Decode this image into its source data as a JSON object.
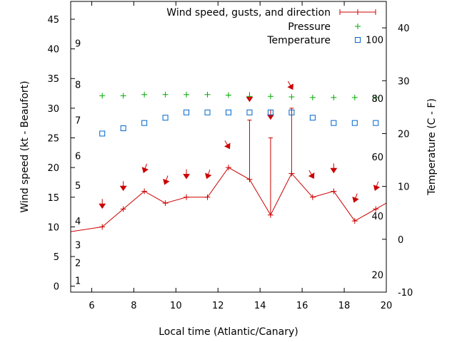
{
  "chart_data": {
    "type": "line",
    "xlabel": "Local time (Atlantic/Canary)",
    "ylabel": "Wind speed (kt - Beaufort)",
    "y2label": "Temperature (C - F)",
    "xlim": [
      5,
      20
    ],
    "ylim": [
      -1,
      48
    ],
    "y2lim": [
      -10,
      45
    ],
    "x_ticks": [
      6,
      8,
      10,
      12,
      14,
      16,
      18,
      20
    ],
    "y_ticks": [
      0,
      5,
      10,
      15,
      20,
      25,
      30,
      35,
      40,
      45
    ],
    "y2_ticks": [
      -10,
      0,
      10,
      20,
      30,
      40
    ],
    "beaufort_scale": [
      {
        "label": "1",
        "kt": 1
      },
      {
        "label": "2",
        "kt": 4
      },
      {
        "label": "3",
        "kt": 7
      },
      {
        "label": "4",
        "kt": 11
      },
      {
        "label": "5",
        "kt": 17
      },
      {
        "label": "6",
        "kt": 22
      },
      {
        "label": "7",
        "kt": 28
      },
      {
        "label": "8",
        "kt": 34
      },
      {
        "label": "9",
        "kt": 41
      }
    ],
    "fahrenheit_scale": [
      {
        "label": "20",
        "c": -6.7
      },
      {
        "label": "40",
        "c": 4.4
      },
      {
        "label": "60",
        "c": 15.6
      },
      {
        "label": "80",
        "c": 26.7
      },
      {
        "label": "100",
        "c": 37.8
      }
    ],
    "legend": {
      "position": "top-right",
      "entries": [
        "Wind speed, gusts, and direction",
        "Pressure",
        "Temperature"
      ]
    },
    "colors": {
      "wind": "#cc0000",
      "pressure": "#00aa00",
      "temperature": "#0066cc",
      "axis": "#000000"
    },
    "series": [
      {
        "name": "Wind speed, gusts, and direction",
        "axis": "y",
        "points": [
          {
            "x": 5.0,
            "y": 9.2
          },
          {
            "x": 6.5,
            "y": 10
          },
          {
            "x": 7.5,
            "y": 13
          },
          {
            "x": 8.5,
            "y": 16
          },
          {
            "x": 9.5,
            "y": 14
          },
          {
            "x": 10.5,
            "y": 15
          },
          {
            "x": 11.5,
            "y": 15
          },
          {
            "x": 12.5,
            "y": 20
          },
          {
            "x": 13.5,
            "y": 18,
            "gust": 28
          },
          {
            "x": 14.5,
            "y": 12,
            "gust": 25
          },
          {
            "x": 15.5,
            "y": 19,
            "gust": 30
          },
          {
            "x": 16.5,
            "y": 15
          },
          {
            "x": 17.5,
            "y": 16
          },
          {
            "x": 18.5,
            "y": 11
          },
          {
            "x": 19.5,
            "y": 13
          },
          {
            "x": 20.0,
            "y": 14
          }
        ]
      },
      {
        "name": "Pressure",
        "axis": "y",
        "points": [
          {
            "x": 6.5,
            "y": 32.1
          },
          {
            "x": 7.5,
            "y": 32.1
          },
          {
            "x": 8.5,
            "y": 32.3
          },
          {
            "x": 9.5,
            "y": 32.3
          },
          {
            "x": 10.5,
            "y": 32.3
          },
          {
            "x": 11.5,
            "y": 32.3
          },
          {
            "x": 12.5,
            "y": 32.2
          },
          {
            "x": 13.5,
            "y": 32.0
          },
          {
            "x": 14.5,
            "y": 32.0
          },
          {
            "x": 15.5,
            "y": 31.9
          },
          {
            "x": 16.5,
            "y": 31.8
          },
          {
            "x": 17.5,
            "y": 31.8
          },
          {
            "x": 18.5,
            "y": 31.8
          },
          {
            "x": 19.5,
            "y": 31.8
          }
        ]
      },
      {
        "name": "Temperature",
        "axis": "y2",
        "points": [
          {
            "x": 6.5,
            "y": 20
          },
          {
            "x": 7.5,
            "y": 21
          },
          {
            "x": 8.5,
            "y": 22
          },
          {
            "x": 9.5,
            "y": 23
          },
          {
            "x": 10.5,
            "y": 24
          },
          {
            "x": 11.5,
            "y": 24
          },
          {
            "x": 12.5,
            "y": 24
          },
          {
            "x": 13.5,
            "y": 24
          },
          {
            "x": 14.5,
            "y": 24
          },
          {
            "x": 15.5,
            "y": 24
          },
          {
            "x": 16.5,
            "y": 23
          },
          {
            "x": 17.5,
            "y": 22
          },
          {
            "x": 18.5,
            "y": 22
          },
          {
            "x": 19.5,
            "y": 22
          }
        ]
      }
    ],
    "wind_direction_arrows": [
      {
        "x": 6.5,
        "y": 13.5,
        "dir_deg": 0
      },
      {
        "x": 7.5,
        "y": 16.5,
        "dir_deg": 0
      },
      {
        "x": 8.5,
        "y": 19.5,
        "dir_deg": 20
      },
      {
        "x": 9.5,
        "y": 17.5,
        "dir_deg": 20
      },
      {
        "x": 10.5,
        "y": 18.5,
        "dir_deg": 0
      },
      {
        "x": 11.5,
        "y": 18.5,
        "dir_deg": 20
      },
      {
        "x": 12.5,
        "y": 23.5,
        "dir_deg": 330
      },
      {
        "x": 13.5,
        "y": 31.5,
        "dir_deg": 0
      },
      {
        "x": 14.5,
        "y": 28.5,
        "dir_deg": 0
      },
      {
        "x": 15.5,
        "y": 33.5,
        "dir_deg": 330
      },
      {
        "x": 16.5,
        "y": 18.5,
        "dir_deg": 330
      },
      {
        "x": 17.5,
        "y": 19.5,
        "dir_deg": 0
      },
      {
        "x": 18.5,
        "y": 14.5,
        "dir_deg": 20
      },
      {
        "x": 19.5,
        "y": 16.5,
        "dir_deg": 20
      }
    ]
  }
}
